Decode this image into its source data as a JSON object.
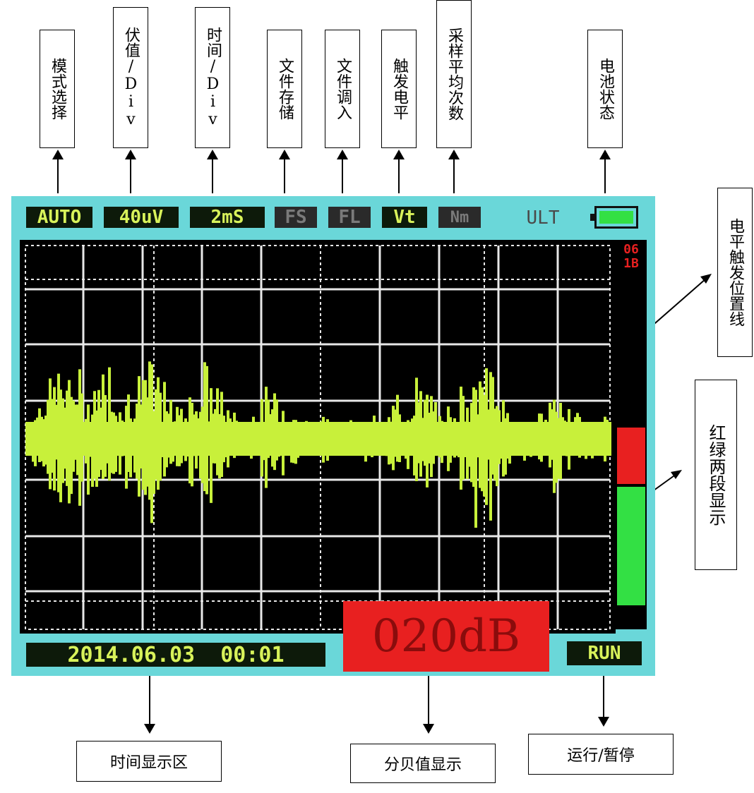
{
  "top_labels": [
    {
      "id": "mode-select",
      "text": "模式选择"
    },
    {
      "id": "volt-div",
      "text": "伏值/Div"
    },
    {
      "id": "time-div",
      "text": "时间/Div"
    },
    {
      "id": "file-save",
      "text": "文件存储"
    },
    {
      "id": "file-load",
      "text": "文件调入"
    },
    {
      "id": "trigger-level",
      "text": "触发电平"
    },
    {
      "id": "sample-avg",
      "text": "采样平均次数"
    },
    {
      "id": "battery-state",
      "text": "电池状态"
    }
  ],
  "right_labels": {
    "trigger_line": "电平触发位置线",
    "two_segment": "红绿两段显示"
  },
  "bottom_labels": {
    "time_area": "时间显示区",
    "db_display": "分贝值显示",
    "run_pause": "运行/暂停"
  },
  "toolbar": {
    "mode": "AUTO",
    "volt": "40uV",
    "time": "2mS",
    "fs": "FS",
    "fl": "FL",
    "vt": "Vt",
    "nm": "Nm",
    "ult": "ULT"
  },
  "status": {
    "datetime": "2014.06.03  00:01",
    "db_value": "020dB",
    "run": "RUN",
    "scale_top": "06\n1B"
  },
  "level_meter": {
    "red_fraction": 0.16,
    "green_fraction": 0.33
  },
  "colors": {
    "screen_frame": "#6ad7d9",
    "waveform": "#c8f03a",
    "db_bg": "#e82020",
    "db_text": "#8a0c0c",
    "meter_red": "#e82020",
    "meter_green": "#33e044"
  },
  "icons": [
    "battery-icon",
    "arrow-up-icon",
    "arrow-down-icon",
    "diagonal-arrow-icon"
  ]
}
